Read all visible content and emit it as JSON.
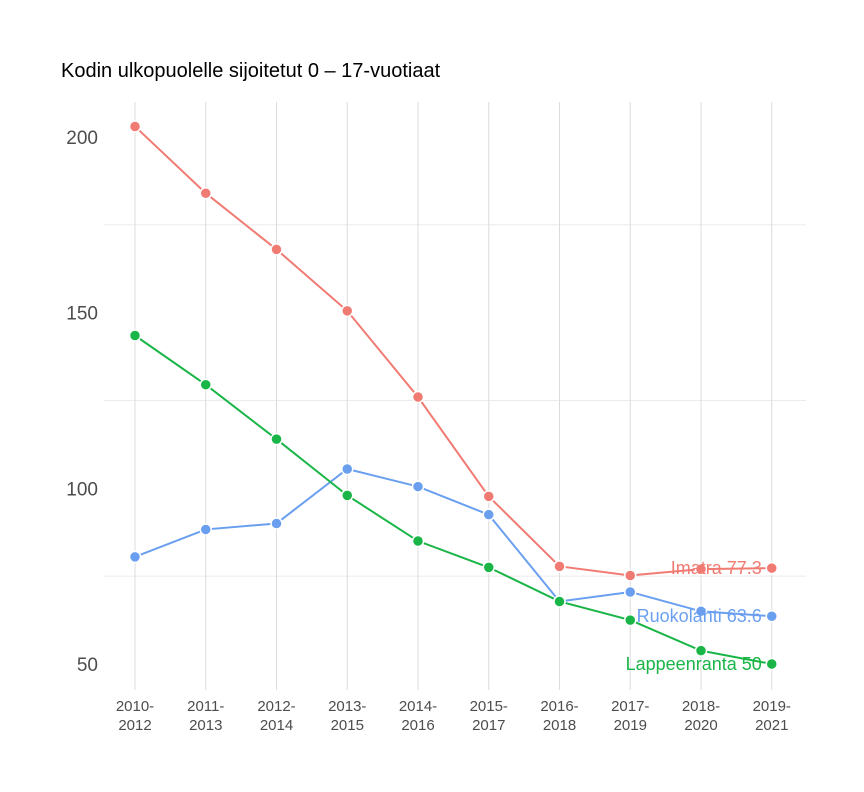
{
  "chart_data": {
    "type": "line",
    "title": "Kodin ulkopuolelle sijoitetut 0 – 17-vuotiaat",
    "xlabel": "",
    "ylabel": "",
    "ylim": [
      43,
      222
    ],
    "yticks": [
      50,
      100,
      150,
      200
    ],
    "yminor": [
      75,
      125,
      175
    ],
    "categories": [
      [
        "2010-",
        "2012"
      ],
      [
        "2011-",
        "2013"
      ],
      [
        "2012-",
        "2014"
      ],
      [
        "2013-",
        "2015"
      ],
      [
        "2014-",
        "2016"
      ],
      [
        "2015-",
        "2017"
      ],
      [
        "2016-",
        "2018"
      ],
      [
        "2017-",
        "2019"
      ],
      [
        "2018-",
        "2020"
      ],
      [
        "2019-",
        "2021"
      ]
    ],
    "grid": true,
    "legend": "none",
    "series": [
      {
        "name": "Imatra",
        "color": "#f07b73",
        "values": [
          203,
          184,
          168,
          150.5,
          126,
          97.7,
          77.8,
          75.2,
          77.0,
          77.3
        ],
        "end_label": "Imatra 77.3"
      },
      {
        "name": "Ruokolahti",
        "color": "#6a9ff0",
        "values": [
          80.5,
          88.3,
          90.0,
          105.5,
          100.5,
          92.5,
          67.8,
          70.5,
          65.0,
          63.6
        ],
        "end_label": "Ruokolahti 63.6"
      },
      {
        "name": "Lappeenranta",
        "color": "#19b547",
        "values": [
          143.5,
          129.5,
          114.0,
          98.0,
          85.0,
          77.5,
          67.8,
          62.5,
          53.8,
          50.0
        ],
        "end_label": "Lappeenranta 50"
      }
    ]
  }
}
